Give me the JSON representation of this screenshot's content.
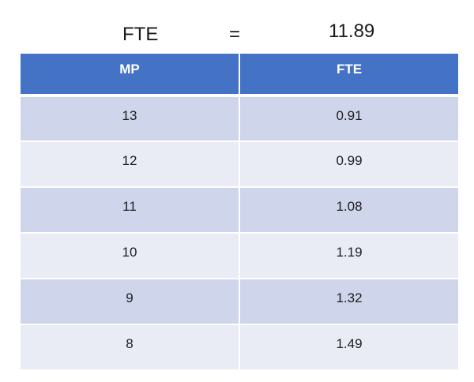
{
  "equation": {
    "left": "FTE",
    "sign": "=",
    "right": "11.89"
  },
  "table": {
    "headers": [
      "MP",
      "FTE"
    ],
    "rows": [
      [
        "13",
        "0.91"
      ],
      [
        "12",
        "0.99"
      ],
      [
        "11",
        "1.08"
      ],
      [
        "10",
        "1.19"
      ],
      [
        "9",
        "1.32"
      ],
      [
        "8",
        "1.49"
      ]
    ]
  },
  "colors": {
    "header": "#4472c4",
    "band_dark": "#cfd5ea",
    "band_light": "#e9ebf5"
  }
}
